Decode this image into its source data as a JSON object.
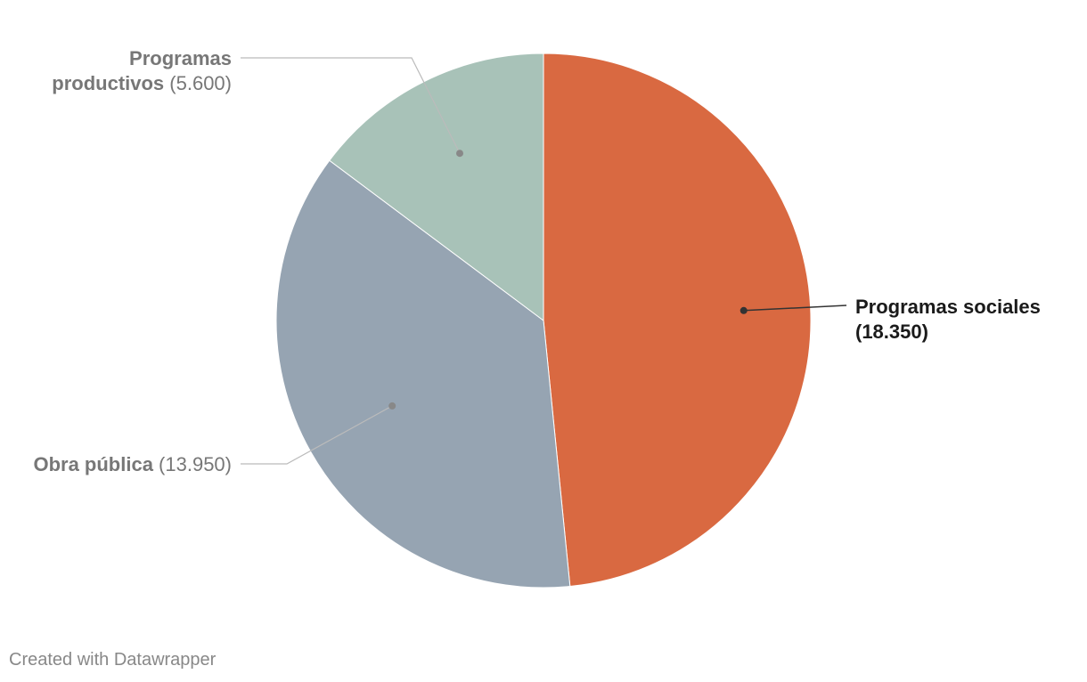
{
  "chart_data": {
    "type": "pie",
    "categories": [
      "Programas sociales",
      "Obra pública",
      "Programas productivos"
    ],
    "values": [
      18350,
      13950,
      5600
    ],
    "value_labels": [
      "18.350",
      "13.950",
      "5.600"
    ],
    "colors": [
      "#d96941",
      "#96a4b2",
      "#a8c2b8"
    ],
    "label_style": [
      "dark",
      "grey",
      "grey"
    ]
  },
  "footer": {
    "credit": "Created with Datawrapper"
  }
}
